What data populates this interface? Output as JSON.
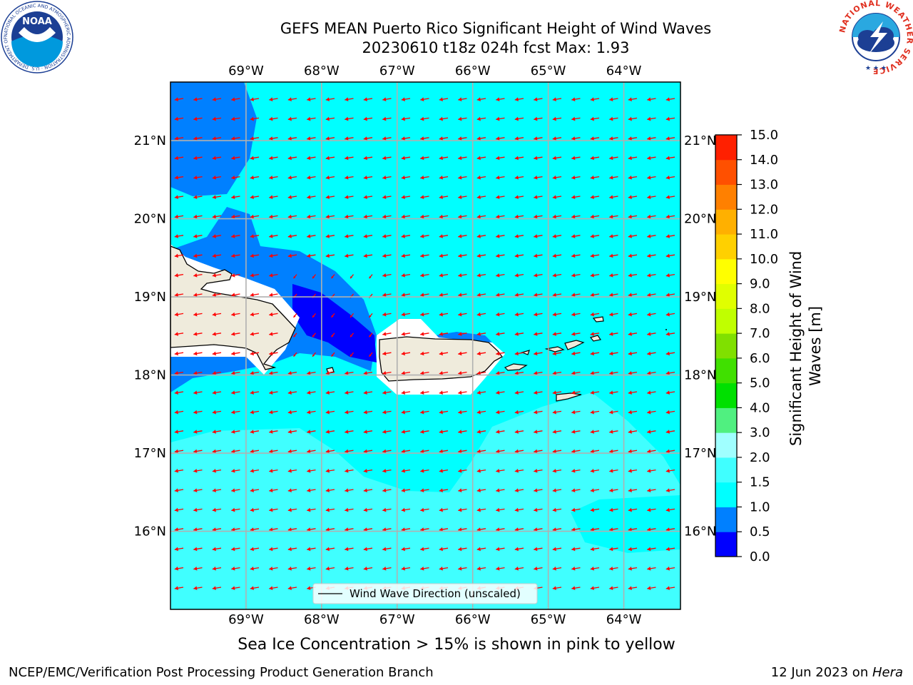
{
  "header": {
    "title_line1": "GEFS MEAN Puerto Rico Significant Height of Wind Waves",
    "title_line2": "20230610 t18z 024h fcst   Max: 1.93"
  },
  "logos": {
    "left": "noaa-logo",
    "left_text": "NOAA",
    "left_ring_text": "NATIONAL OCEANIC AND ATMOSPHERIC ADMINISTRATION · U.S. DEPARTMENT OF COMMERCE",
    "right": "nws-logo",
    "right_ring_text": "NATIONAL WEATHER SERVICE"
  },
  "map": {
    "lon_labels": [
      "69°W",
      "68°W",
      "67°W",
      "66°W",
      "65°W",
      "64°W"
    ],
    "lat_labels": [
      "21°N",
      "20°N",
      "19°N",
      "18°N",
      "17°N",
      "16°N"
    ],
    "lon_values": [
      -69,
      -68,
      -67,
      -66,
      -65,
      -64
    ],
    "lat_values": [
      21,
      20,
      19,
      18,
      17,
      16
    ],
    "extent": {
      "lon_min": -70,
      "lon_max": -63.25,
      "lat_min": 15,
      "lat_max": 21.75
    },
    "legend_label": "Wind Wave Direction (unscaled)",
    "vector_color": "#ff0000",
    "land_color": "#efebdc"
  },
  "colorbar": {
    "label": "Significant Height of Wind Waves [m]",
    "ticks": [
      "0.0",
      "0.5",
      "1.0",
      "1.5",
      "2.0",
      "3.0",
      "4.0",
      "5.0",
      "6.0",
      "7.0",
      "8.0",
      "9.0",
      "10.0",
      "11.0",
      "12.0",
      "13.0",
      "14.0",
      "15.0"
    ],
    "colors": [
      "#0000ff",
      "#0080ff",
      "#00ffff",
      "#40ffff",
      "#a0ffff",
      "#50f080",
      "#00e000",
      "#40e000",
      "#80e000",
      "#c0ff00",
      "#e0ff00",
      "#ffff00",
      "#ffd000",
      "#ffb000",
      "#ff8000",
      "#ff5000",
      "#ff2000"
    ]
  },
  "caption": "Sea Ice Concentration > 15% is shown in pink to yellow",
  "footer": {
    "left": "NCEP/EMC/Verification Post Processing Product Generation Branch",
    "right_prefix": "12 Jun 2023 on ",
    "right_host": "Hera"
  }
}
